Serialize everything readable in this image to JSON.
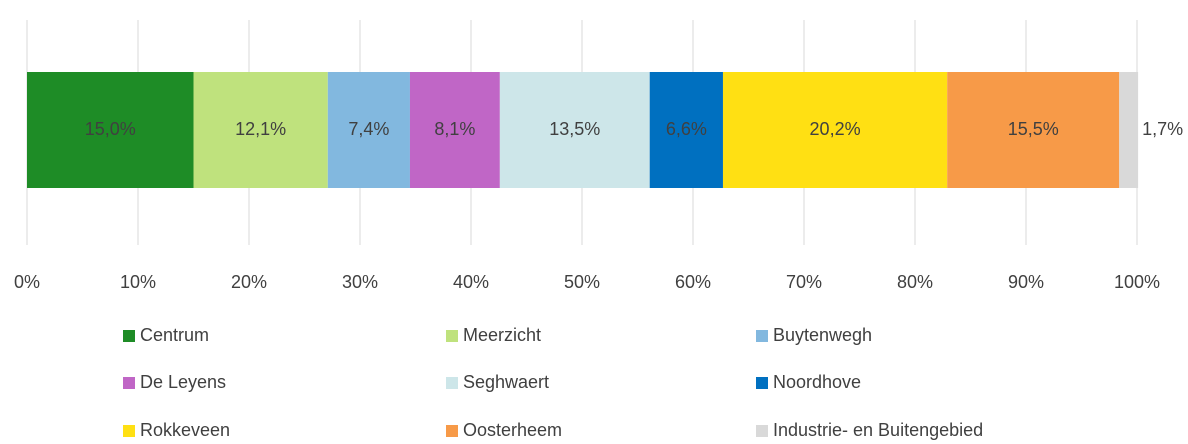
{
  "chart_data": {
    "type": "bar",
    "orientation": "horizontal",
    "stacked": true,
    "categories": [
      null
    ],
    "xlim": [
      0,
      100
    ],
    "xticks": [
      {
        "value": 0,
        "label": "0%"
      },
      {
        "value": 10,
        "label": "10%"
      },
      {
        "value": 20,
        "label": "20%"
      },
      {
        "value": 30,
        "label": "30%"
      },
      {
        "value": 40,
        "label": "40%"
      },
      {
        "value": 50,
        "label": "50%"
      },
      {
        "value": 60,
        "label": "60%"
      },
      {
        "value": 70,
        "label": "70%"
      },
      {
        "value": 80,
        "label": "80%"
      },
      {
        "value": 90,
        "label": "90%"
      },
      {
        "value": 100,
        "label": "100%"
      }
    ],
    "grid": true,
    "legend": "bottom",
    "series": [
      {
        "name": "Centrum",
        "color": "#1e8c26",
        "label_color": "#ffffff",
        "values": [
          15.0
        ],
        "value_labels": [
          "15,0%"
        ]
      },
      {
        "name": "Meerzicht",
        "color": "#bfe27d",
        "label_color": "#000000",
        "values": [
          12.1
        ],
        "value_labels": [
          "12,1%"
        ]
      },
      {
        "name": "Buytenwegh",
        "color": "#82b8df",
        "label_color": "#000000",
        "values": [
          7.4
        ],
        "value_labels": [
          "7,4%"
        ]
      },
      {
        "name": "De Leyens",
        "color": "#c066c6",
        "label_color": "#000000",
        "values": [
          8.1
        ],
        "value_labels": [
          "8,1%"
        ]
      },
      {
        "name": "Seghwaert",
        "color": "#cde6e9",
        "label_color": "#000000",
        "values": [
          13.5
        ],
        "value_labels": [
          "13,5%"
        ]
      },
      {
        "name": "Noordhove",
        "color": "#0070c0",
        "label_color": "#ffffff",
        "values": [
          6.6
        ],
        "value_labels": [
          "6,6%"
        ]
      },
      {
        "name": "Rokkeveen",
        "color": "#ffe013",
        "label_color": "#000000",
        "values": [
          20.2
        ],
        "value_labels": [
          "20,2%"
        ]
      },
      {
        "name": "Oosterheem",
        "color": "#f79a48",
        "label_color": "#000000",
        "values": [
          15.5
        ],
        "value_labels": [
          "15,5%"
        ]
      },
      {
        "name": "Industrie- en Buitengebied",
        "color": "#d9d9d9",
        "label_color": "#000000",
        "values": [
          1.7
        ],
        "value_labels": [
          "1,7%"
        ]
      }
    ]
  }
}
